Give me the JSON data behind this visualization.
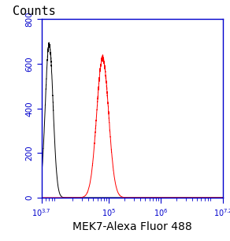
{
  "title_y": "Counts",
  "xlabel": "MEK7-Alexa Fluor 488",
  "xlim_log": [
    3.7,
    7.2
  ],
  "ylim": [
    0,
    800
  ],
  "yticks": [
    0,
    200,
    400,
    600,
    800
  ],
  "black_peak_log": 3.85,
  "black_peak_height": 690,
  "black_sigma_log": 0.075,
  "red_peak_log": 4.88,
  "red_peak_height": 625,
  "red_sigma_log": 0.115,
  "black_color": "#000000",
  "red_color": "#ff0000",
  "spine_color": "#0000cc",
  "tick_color": "#0000cc",
  "background_color": "#ffffff",
  "title_fontsize": 11,
  "xlabel_fontsize": 10,
  "tick_fontsize": 7.5
}
